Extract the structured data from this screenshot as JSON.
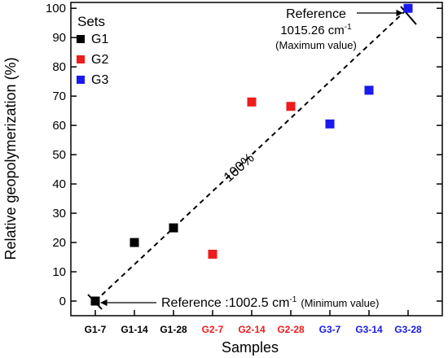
{
  "chart_data": {
    "type": "scatter",
    "xlabel": "Samples",
    "ylabel": "Relative geopolymerization (%)",
    "ylim": [
      -5,
      102
    ],
    "yticks": [
      0,
      10,
      20,
      30,
      40,
      50,
      60,
      70,
      80,
      90,
      100
    ],
    "grid": false,
    "categories": [
      "G1-7",
      "G1-14",
      "G1-28",
      "G2-7",
      "G2-14",
      "G2-28",
      "G3-7",
      "G3-14",
      "G3-28"
    ],
    "category_colors": [
      "#000000",
      "#000000",
      "#000000",
      "#ee1c1c",
      "#ee1c1c",
      "#ee1c1c",
      "#1a1aee",
      "#1a1aee",
      "#1a1aee"
    ],
    "legend": {
      "title": "Sets",
      "placement": "top-left"
    },
    "series": [
      {
        "name": "G1",
        "color": "#000000",
        "values": [
          0,
          20,
          25
        ]
      },
      {
        "name": "G2",
        "color": "#ee1c1c",
        "values": [
          16,
          68,
          66.5
        ]
      },
      {
        "name": "G3",
        "color": "#1a1aee",
        "values": [
          60.5,
          72,
          100
        ]
      }
    ],
    "trendline": {
      "from": [
        "G1-7",
        0
      ],
      "to": [
        "G3-28",
        100
      ],
      "style": "dashed",
      "label": "100%"
    },
    "annotations": {
      "reference_max": {
        "line1": "Reference",
        "line2_value": "1015.26 cm",
        "line2_sup": "-1",
        "line3": "(Maximum value)"
      },
      "reference_min": {
        "value": "Reference :1002.5 cm",
        "sup": "-1",
        "note": "(Minimum value)"
      }
    }
  }
}
